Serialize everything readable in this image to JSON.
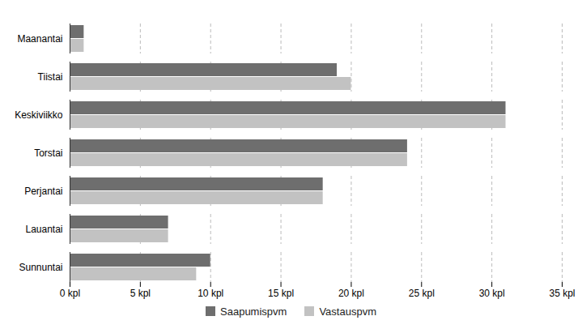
{
  "chart_data": {
    "type": "bar",
    "orientation": "horizontal",
    "grid": true,
    "legend": "bottom",
    "categories": [
      "Maanantai",
      "Tiistai",
      "Keskiviikko",
      "Torstai",
      "Perjantai",
      "Lauantai",
      "Sunnuntai"
    ],
    "series": [
      {
        "name": "Saapumispvm",
        "color": "#6e6e6e",
        "values": [
          1,
          19,
          31,
          24,
          18,
          7,
          10
        ]
      },
      {
        "name": "Vastauspvm",
        "color": "#c2c2c2",
        "values": [
          1,
          20,
          31,
          24,
          18,
          7,
          9
        ]
      }
    ],
    "xlim": [
      0,
      35
    ],
    "xticks": [
      {
        "value": 0,
        "label": "0 kpl"
      },
      {
        "value": 5,
        "label": "5 kpl"
      },
      {
        "value": 10,
        "label": "10 kpl"
      },
      {
        "value": 15,
        "label": "15 kpl"
      },
      {
        "value": 20,
        "label": "20 kpl"
      },
      {
        "value": 25,
        "label": "25 kpl"
      },
      {
        "value": 30,
        "label": "30 kpl"
      },
      {
        "value": 35,
        "label": "35 kpl"
      }
    ]
  }
}
